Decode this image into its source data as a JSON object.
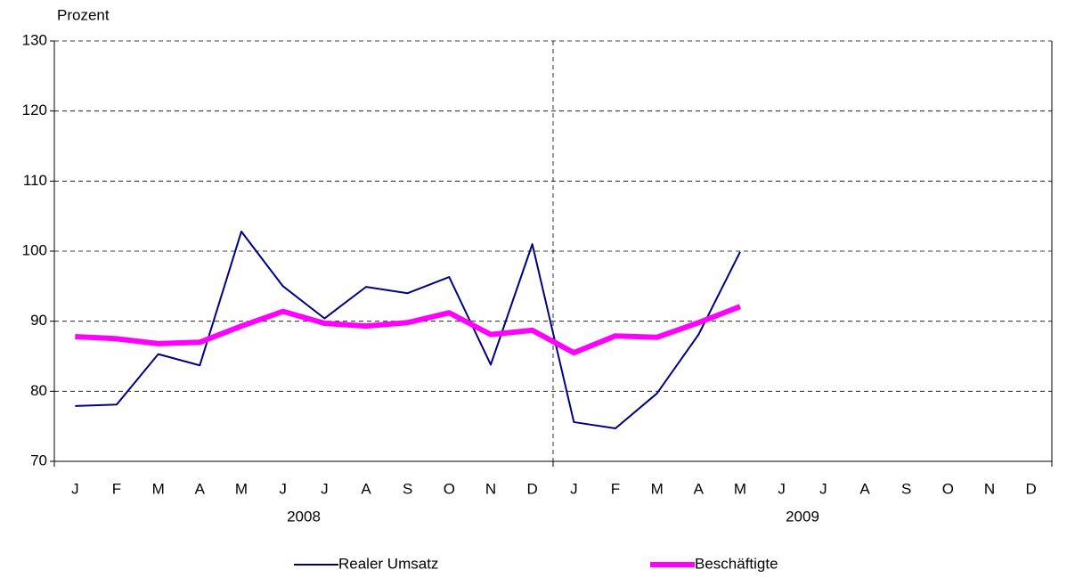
{
  "chart_data": {
    "type": "line",
    "y_axis_label": "Prozent",
    "categories": [
      "J",
      "F",
      "M",
      "A",
      "M",
      "J",
      "J",
      "A",
      "S",
      "O",
      "N",
      "D",
      "J",
      "F",
      "M",
      "A",
      "M",
      "J",
      "J",
      "A",
      "S",
      "O",
      "N",
      "D"
    ],
    "year_labels": [
      "2008",
      "2009"
    ],
    "series": [
      {
        "name": "Realer Umsatz",
        "color": "#000080",
        "line_width": 2,
        "values": [
          77.9,
          78.1,
          85.3,
          83.7,
          102.8,
          95.0,
          90.4,
          94.9,
          94.0,
          96.3,
          83.8,
          101.0,
          75.6,
          74.7,
          79.7,
          88.1,
          99.9,
          null,
          null,
          null,
          null,
          null,
          null,
          null
        ]
      },
      {
        "name": "Beschäftigte",
        "color": "#ff00ff",
        "line_width": 6,
        "values": [
          87.8,
          87.5,
          86.8,
          87.0,
          89.3,
          91.4,
          89.7,
          89.3,
          89.8,
          91.2,
          88.1,
          88.7,
          85.5,
          87.9,
          87.7,
          89.8,
          92.1,
          null,
          null,
          null,
          null,
          null,
          null,
          null
        ]
      }
    ],
    "ylim": [
      70,
      130
    ],
    "yticks": [
      70,
      80,
      90,
      100,
      110,
      120,
      130
    ],
    "grid": true
  }
}
